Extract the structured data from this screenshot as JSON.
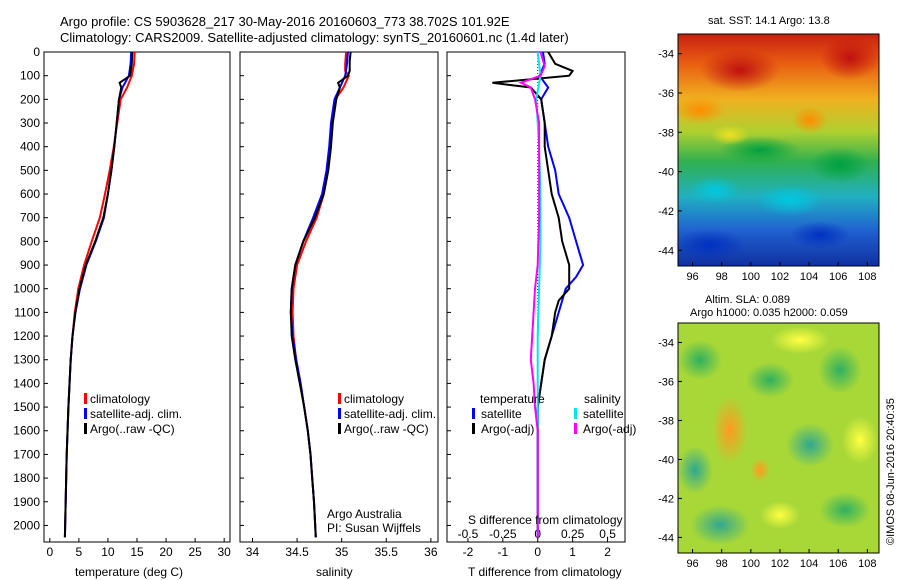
{
  "header": {
    "line1": "Argo profile: CS 5903628_217 30-May-2016 20160603_773 38.702S 101.92E",
    "line2": "Climatology: CARS2009. Satellite-adjusted climatology: synTS_20160601.nc (1.4d later)"
  },
  "footer": {
    "attribution": "Argo Australia",
    "pi": "PI: Susan Wijffels",
    "stamp": "©IMOS 08-Jun-2016 20:40:35"
  },
  "colors": {
    "climatology": "#ff0000",
    "satellite": "#0000ff",
    "argo": "#000000",
    "sal_satellite": "#00e5ee",
    "sal_argo": "#ff00ff"
  },
  "chart_data": [
    {
      "type": "line",
      "name": "temperature",
      "xlabel": "temperature (deg C)",
      "ylabel": "",
      "xlim": [
        -1,
        31
      ],
      "ylim": [
        2070,
        0
      ],
      "xticks": [
        "0",
        "5",
        "10",
        "15",
        "20",
        "25",
        "30"
      ],
      "xtickvals": [
        0,
        5,
        10,
        15,
        20,
        25,
        30
      ],
      "yticks": [
        "0",
        "100",
        "200",
        "300",
        "400",
        "500",
        "600",
        "700",
        "800",
        "900",
        "1000",
        "1100",
        "1200",
        "1300",
        "1400",
        "1500",
        "1600",
        "1700",
        "1800",
        "1900",
        "2000"
      ],
      "ytickvals": [
        0,
        100,
        200,
        300,
        400,
        500,
        600,
        700,
        800,
        900,
        1000,
        1100,
        1200,
        1300,
        1400,
        1500,
        1600,
        1700,
        1800,
        1900,
        2000
      ],
      "legend": [
        "climatology",
        "satellite-adj. clim.",
        "Argo(..raw -QC)"
      ],
      "series": [
        {
          "name": "climatology",
          "depth": [
            0,
            50,
            100,
            150,
            200,
            300,
            400,
            500,
            600,
            700,
            800,
            900,
            1000,
            1100,
            1200,
            1300,
            1500,
            1700,
            2050
          ],
          "values": [
            14.6,
            14.5,
            14.1,
            13.3,
            12.2,
            11.6,
            11.0,
            10.3,
            9.5,
            8.6,
            7.2,
            5.9,
            4.9,
            4.3,
            3.9,
            3.6,
            3.2,
            2.9,
            2.6
          ]
        },
        {
          "name": "satellite-adj. clim.",
          "depth": [
            0,
            50,
            100,
            150,
            200,
            300,
            400,
            500,
            600,
            700,
            800,
            900,
            1000,
            1100,
            1200,
            1300,
            1500,
            1700,
            2050
          ],
          "values": [
            14.0,
            13.9,
            13.6,
            12.5,
            11.9,
            11.5,
            11.1,
            10.6,
            10.0,
            9.3,
            7.9,
            6.3,
            5.2,
            4.4,
            3.9,
            3.6,
            3.2,
            2.9,
            2.6
          ]
        },
        {
          "name": "Argo(..raw -QC)",
          "depth": [
            0,
            50,
            100,
            130,
            150,
            200,
            300,
            400,
            500,
            600,
            700,
            800,
            900,
            1000,
            1100,
            1200,
            1300,
            1500,
            1700,
            2050
          ],
          "values": [
            14.2,
            14.1,
            13.8,
            12.0,
            12.3,
            11.9,
            11.5,
            11.1,
            10.6,
            10.0,
            9.2,
            7.8,
            6.2,
            5.1,
            4.4,
            3.9,
            3.6,
            3.2,
            2.9,
            2.6
          ]
        }
      ]
    },
    {
      "type": "line",
      "name": "salinity",
      "xlabel": "salinity",
      "ylabel": "",
      "xlim": [
        33.86,
        36.08
      ],
      "ylim": [
        2070,
        0
      ],
      "xticks": [
        "34",
        "34.5",
        "35",
        "35.5",
        "36"
      ],
      "xtickvals": [
        34,
        34.5,
        35,
        35.5,
        36
      ],
      "legend": [
        "climatology",
        "satellite-adj. clim.",
        "Argo(..raw -QC)"
      ],
      "series": [
        {
          "name": "climatology",
          "depth": [
            0,
            50,
            80,
            100,
            150,
            200,
            300,
            400,
            500,
            600,
            700,
            800,
            900,
            1000,
            1100,
            1200,
            1300,
            1400,
            1500,
            1600,
            1700,
            1800,
            1900,
            2050
          ],
          "values": [
            35.05,
            35.04,
            35.04,
            35.08,
            35.02,
            34.93,
            34.89,
            34.87,
            34.84,
            34.8,
            34.72,
            34.6,
            34.5,
            34.46,
            34.45,
            34.46,
            34.49,
            34.54,
            34.58,
            34.62,
            34.65,
            34.67,
            34.69,
            34.71
          ]
        },
        {
          "name": "satellite-adj. clim.",
          "depth": [
            0,
            50,
            100,
            150,
            200,
            300,
            400,
            500,
            600,
            700,
            800,
            900,
            1000,
            1100,
            1200,
            1300,
            1400,
            1500,
            1600,
            1700,
            1800,
            1900,
            2050
          ],
          "values": [
            35.07,
            35.06,
            35.04,
            34.98,
            34.92,
            34.88,
            34.86,
            34.83,
            34.78,
            34.68,
            34.57,
            34.48,
            34.44,
            34.43,
            34.45,
            34.49,
            34.54,
            34.58,
            34.62,
            34.65,
            34.67,
            34.69,
            34.71
          ]
        },
        {
          "name": "Argo(..raw -QC)",
          "depth": [
            0,
            40,
            80,
            100,
            130,
            150,
            200,
            300,
            400,
            500,
            600,
            700,
            800,
            900,
            1000,
            1100,
            1200,
            1300,
            1400,
            1500,
            1600,
            1700,
            1800,
            1900,
            2050
          ],
          "values": [
            35.1,
            35.09,
            35.09,
            35.07,
            34.96,
            34.98,
            34.94,
            34.9,
            34.88,
            34.85,
            34.8,
            34.7,
            34.57,
            34.48,
            34.44,
            34.43,
            34.44,
            34.48,
            34.53,
            34.58,
            34.62,
            34.65,
            34.67,
            34.69,
            34.71
          ]
        }
      ]
    },
    {
      "type": "line",
      "name": "differences",
      "xlabel": "T difference from climatology",
      "xlabel2": "S difference from climatology",
      "xlim": [
        -2.6,
        2.5
      ],
      "ylim": [
        2070,
        0
      ],
      "xticks": [
        "-2",
        "-1",
        "0",
        "1",
        "2"
      ],
      "xtickvals": [
        -2,
        -1,
        0,
        1,
        2
      ],
      "sticks": [
        "-0.5",
        "-0.25",
        "0",
        "0.25",
        "0.5"
      ],
      "legend_temperature_title": "temperature",
      "legend_salinity_title": "salinity",
      "legend": [
        "satellite",
        "Argo(-adj)",
        "satellite",
        "Argo(-adj)"
      ],
      "series": [
        {
          "name": "T satellite",
          "depth": [
            0,
            50,
            100,
            150,
            200,
            300,
            400,
            500,
            600,
            700,
            800,
            850,
            900,
            950,
            1000,
            1100,
            1200,
            1300,
            1400,
            1500,
            1700,
            1900,
            2050
          ],
          "values": [
            0.15,
            0.2,
            0.05,
            0.3,
            0.1,
            0.2,
            0.3,
            0.5,
            0.6,
            0.9,
            1.1,
            1.2,
            1.3,
            1.1,
            0.8,
            0.6,
            0.4,
            0.2,
            0.1,
            0.0,
            0.0,
            0.0,
            0.0
          ]
        },
        {
          "name": "T Argo(-adj)",
          "depth": [
            0,
            50,
            80,
            100,
            130,
            150,
            200,
            300,
            400,
            500,
            600,
            700,
            800,
            900,
            1000,
            1050,
            1100,
            1200,
            1300,
            1400,
            1500,
            1700,
            1900,
            2050
          ],
          "values": [
            0.3,
            0.5,
            1.0,
            0.9,
            -1.3,
            -0.2,
            0.1,
            0.2,
            0.2,
            0.3,
            0.4,
            0.6,
            0.7,
            0.9,
            0.9,
            0.6,
            0.5,
            0.4,
            0.2,
            0.1,
            0.0,
            0.0,
            0.0,
            0.0
          ]
        },
        {
          "name": "S satellite",
          "depth": [
            0,
            100,
            200,
            400,
            600,
            800,
            1000,
            1200,
            1400,
            1600,
            1800,
            2050
          ],
          "values": [
            0.0,
            0.02,
            -0.01,
            0.01,
            0.02,
            0.02,
            0.01,
            0.0,
            0.0,
            0.0,
            0.0,
            0.0
          ]
        },
        {
          "name": "S Argo(-adj)",
          "depth": [
            0,
            60,
            100,
            130,
            150,
            200,
            300,
            500,
            700,
            900,
            1000,
            1100,
            1200,
            1300,
            1400,
            1500,
            1600,
            1800,
            2050
          ],
          "values": [
            0.02,
            0.05,
            0.02,
            -0.12,
            -0.05,
            -0.02,
            0.01,
            0.01,
            0.01,
            0.0,
            -0.02,
            -0.03,
            -0.04,
            -0.05,
            -0.03,
            -0.02,
            0.0,
            0.0,
            0.0
          ]
        }
      ]
    },
    {
      "type": "heatmap",
      "name": "sst_map",
      "title": "sat. SST: 14.1  Argo: 13.8",
      "xticks": [
        "96",
        "98",
        "100",
        "102",
        "104",
        "106",
        "108"
      ],
      "yticks": [
        "-34",
        "-36",
        "-38",
        "-40",
        "-42",
        "-44"
      ]
    },
    {
      "type": "heatmap",
      "name": "sla_map",
      "title": "Altim. SLA: 0.089",
      "subtitle": "Argo h1000: 0.035 h2000: 0.059",
      "xticks": [
        "96",
        "98",
        "100",
        "102",
        "104",
        "106",
        "108"
      ],
      "yticks": [
        "-34",
        "-36",
        "-38",
        "-40",
        "-42",
        "-44"
      ]
    }
  ]
}
